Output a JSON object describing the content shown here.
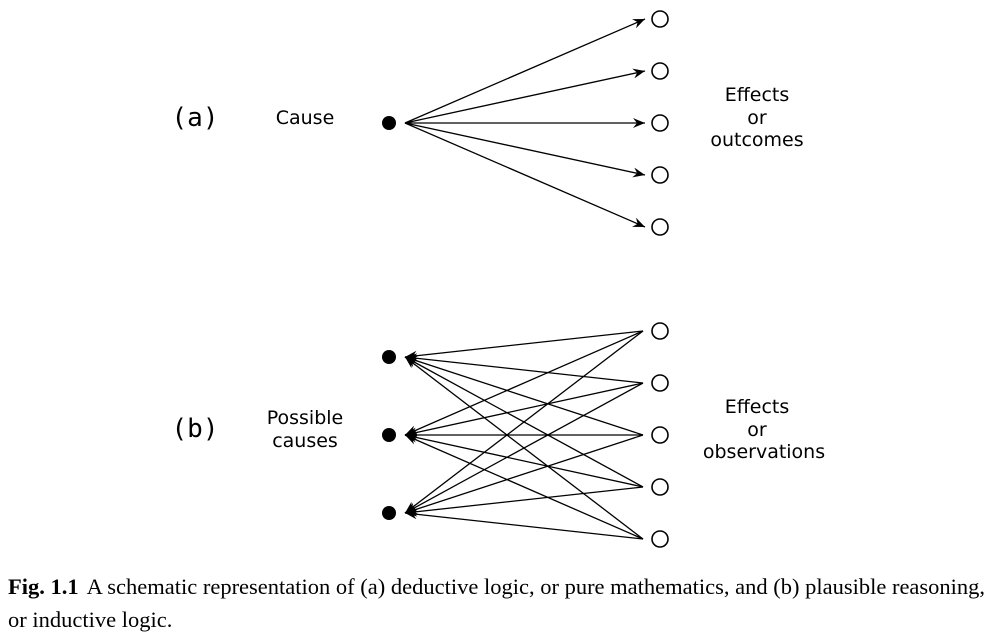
{
  "panel_a": {
    "label": "(a)",
    "left_label": [
      "Cause"
    ],
    "right_label": [
      "Effects",
      "or",
      "outcomes"
    ]
  },
  "panel_b": {
    "label": "(b)",
    "left_label": [
      "Possible",
      "causes"
    ],
    "right_label": [
      "Effects",
      "or",
      "observations"
    ]
  },
  "caption": {
    "figure": "Fig. 1.1",
    "text": "A schematic representation of (a) deductive logic, or pure mathematics, and (b) plausible reasoning, or inductive logic."
  }
}
